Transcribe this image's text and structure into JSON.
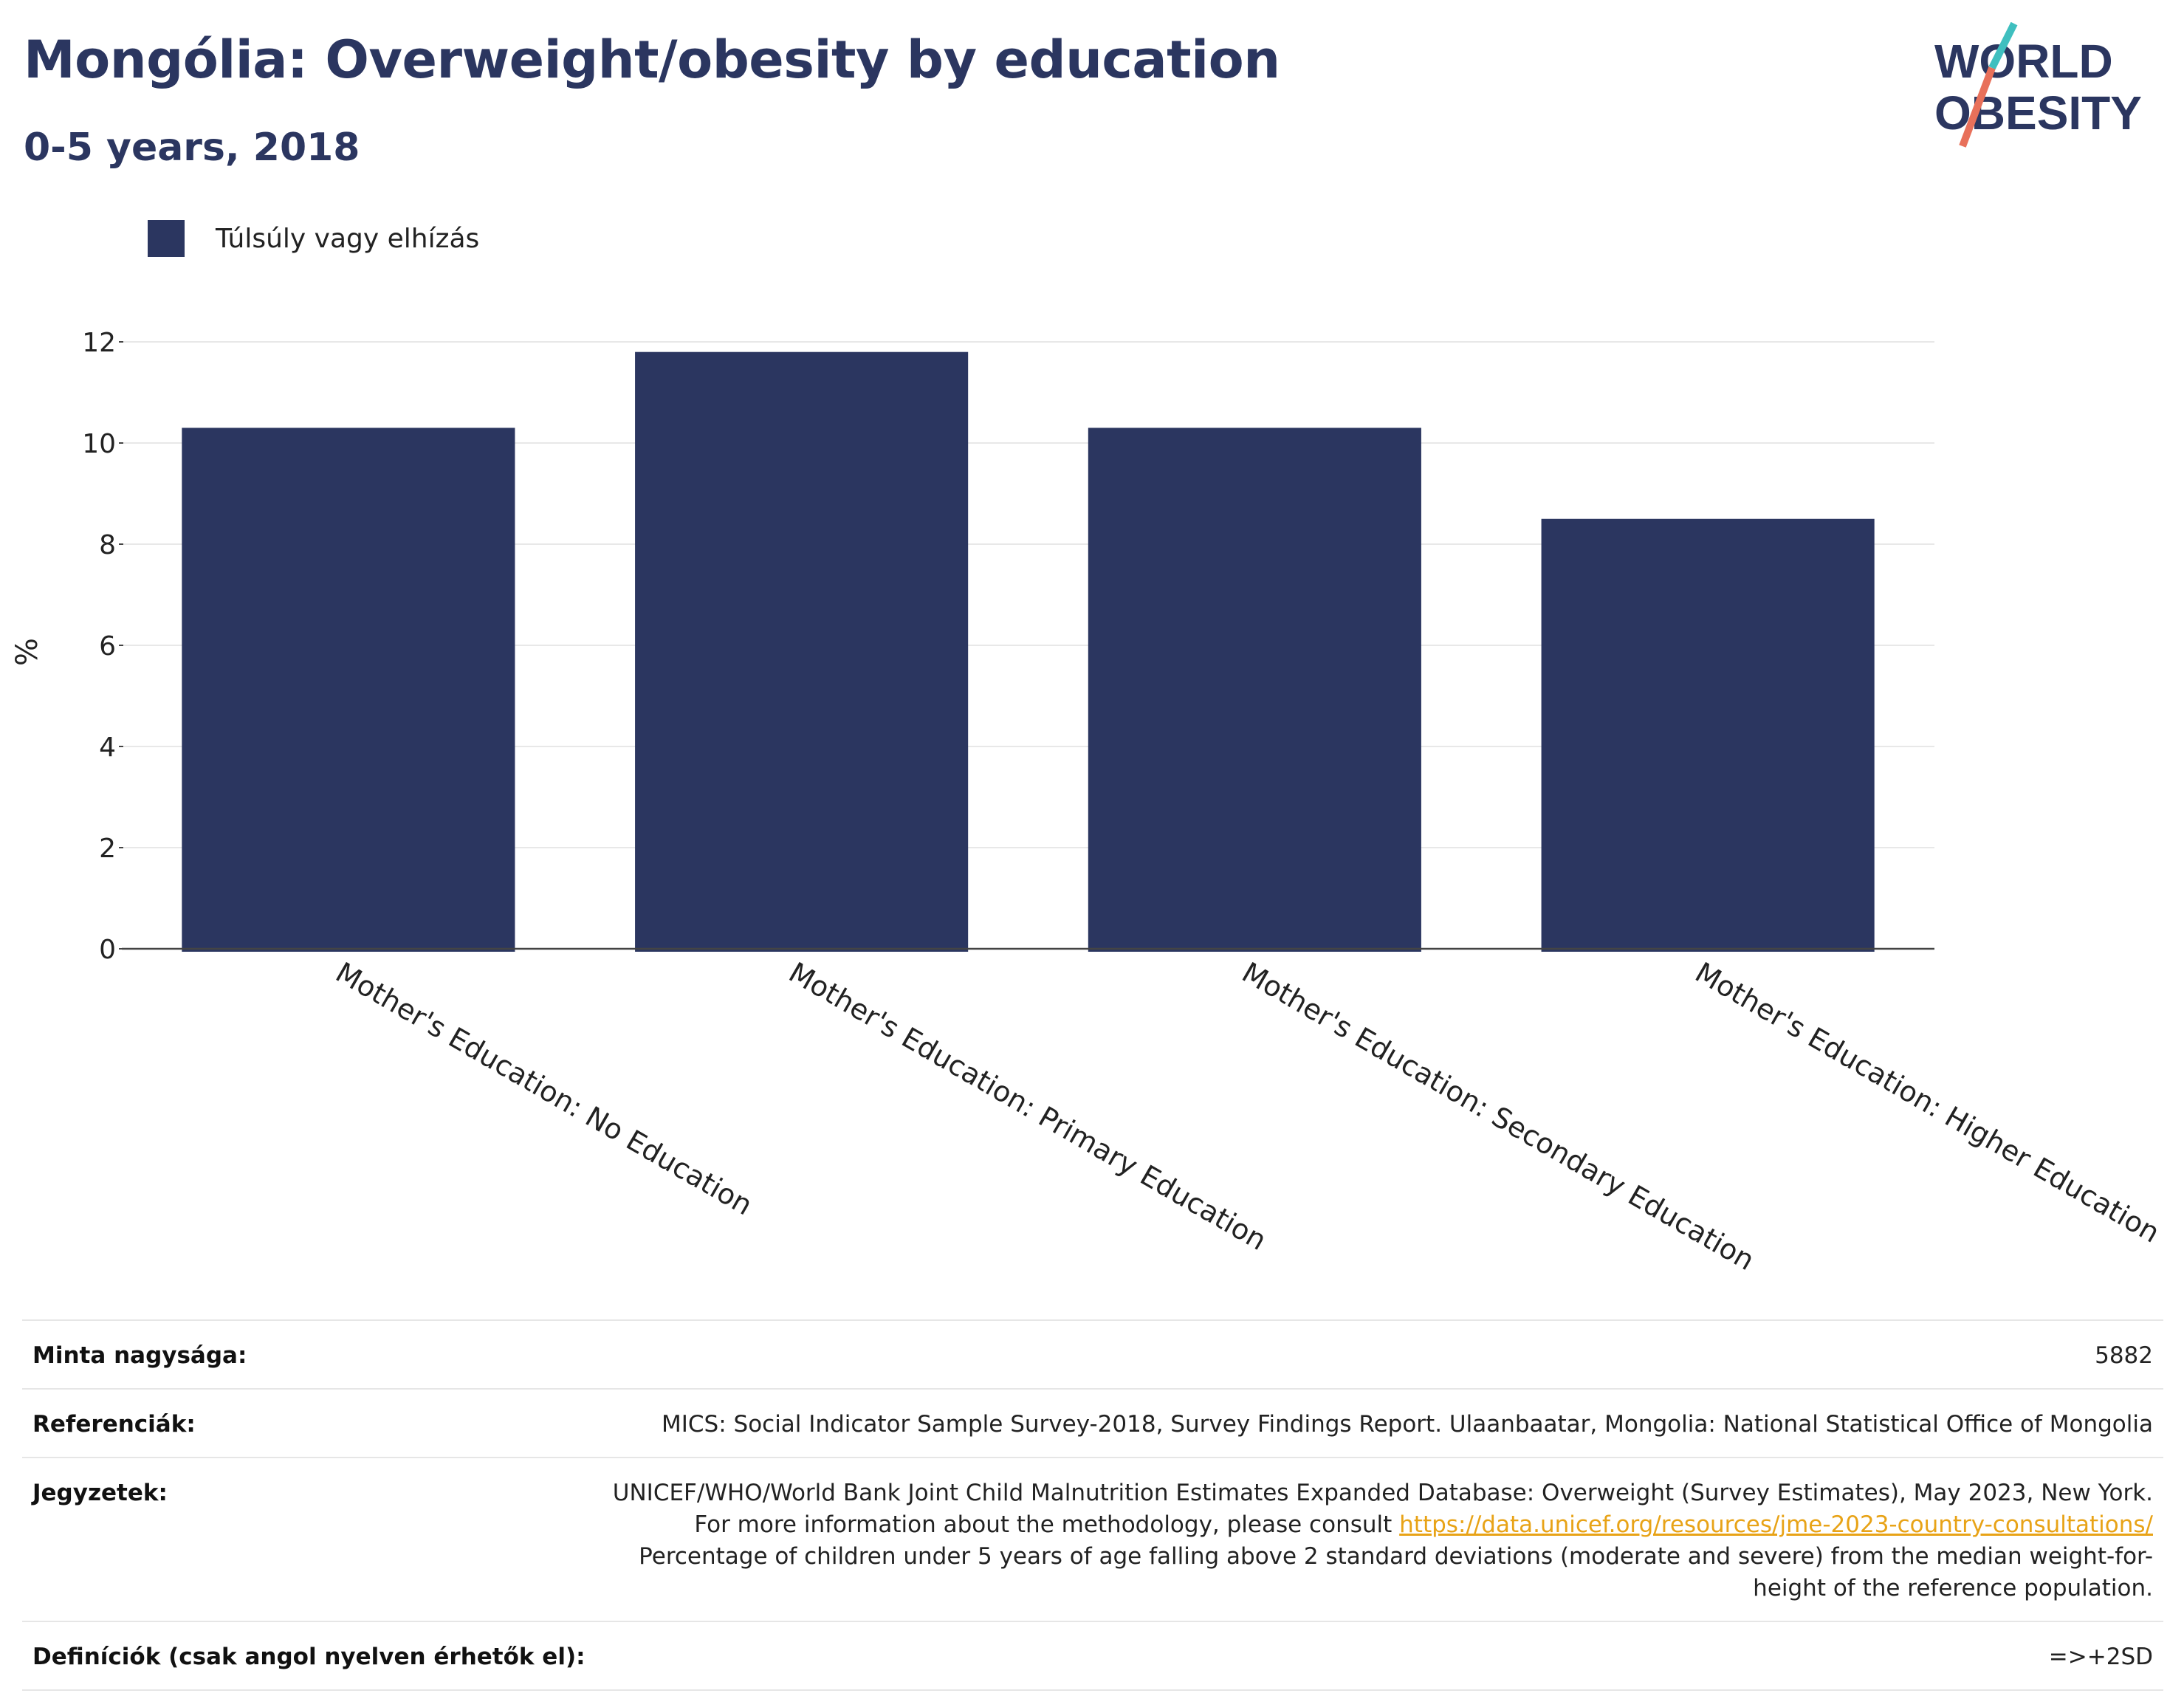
{
  "header": {
    "title": "Mongólia: Overweight/obesity by education",
    "subtitle": "0-5 years, 2018",
    "logo_text_top": "WORLD",
    "logo_text_bottom": "OBESITY"
  },
  "colors": {
    "bar": "#2b3660",
    "title": "#2b3660",
    "logo_teal": "#3fbfbf",
    "logo_coral": "#e8705a",
    "link": "#e8a317"
  },
  "chart_data": {
    "type": "bar",
    "categories": [
      "Mother's Education: No Education",
      "Mother's Education: Primary Education",
      "Mother's Education: Secondary Education",
      "Mother's Education: Higher Education"
    ],
    "series": [
      {
        "name": "Túlsúly vagy elhízás",
        "values": [
          10.3,
          11.8,
          10.3,
          8.5
        ]
      }
    ],
    "ylabel": "%",
    "xlabel": "",
    "ylim": [
      0,
      12
    ],
    "yticks": [
      0,
      2,
      4,
      6,
      8,
      10,
      12
    ],
    "grid": true,
    "legend": "top-left"
  },
  "info": {
    "sample_label": "Minta nagysága:",
    "sample_value": "5882",
    "references_label": "Referenciák:",
    "references_value": "MICS: Social Indicator Sample Survey-2018, Survey Findings Report. Ulaanbaatar, Mongolia: National Statistical Office of Mongolia",
    "notes_label": "Jegyzetek:",
    "notes_text_1": "UNICEF/WHO/World Bank Joint Child Malnutrition Estimates Expanded Database: Overweight (Survey Estimates), May 2023, New York. For more information about the methodology, please consult",
    "notes_link": "https://data.unicef.org/resources/jme-2023-country-consultations/",
    "notes_text_2": "Percentage of children under 5 years of age falling above 2 standard deviations (moderate and severe) from the median weight-for-height of the reference population.",
    "definitions_label": "Definíciók (csak angol nyelven érhetők el):",
    "definitions_value": "=>+2SD"
  }
}
